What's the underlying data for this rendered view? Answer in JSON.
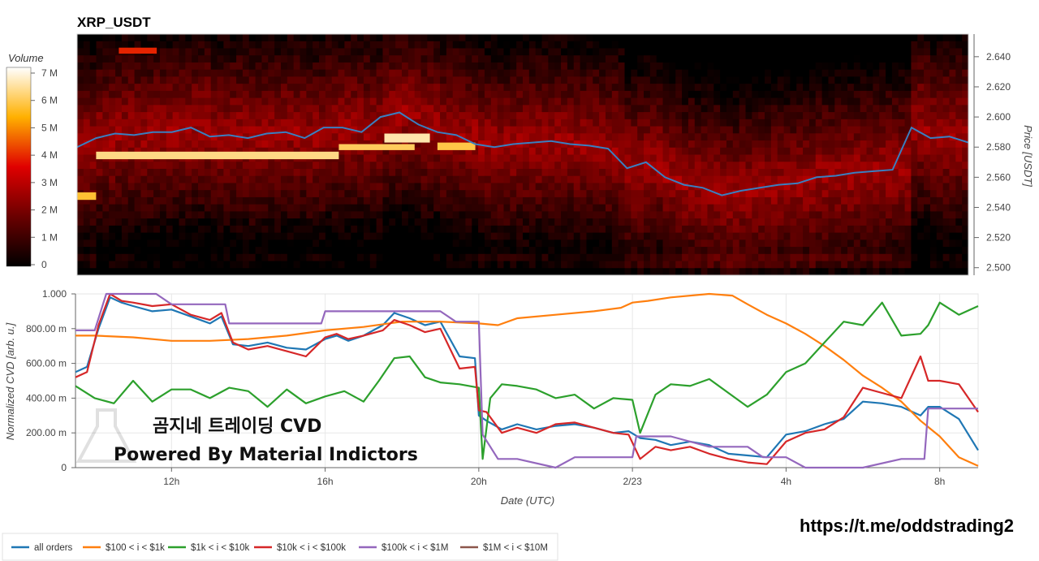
{
  "chart_data": [
    {
      "type": "heatmap",
      "title": "XRP_USDT",
      "ylabel": "Price [USDT]",
      "ylim": [
        2.495,
        2.655
      ],
      "yticks": [
        "2.500",
        "2.520",
        "2.540",
        "2.560",
        "2.580",
        "2.600",
        "2.620",
        "2.640"
      ],
      "colorbar": {
        "title": "Volume",
        "ticks": [
          "0",
          "1 M",
          "2 M",
          "3 M",
          "4 M",
          "5 M",
          "6 M",
          "7 M"
        ]
      },
      "price_series": {
        "x": [
          9.5,
          10.0,
          10.5,
          11.0,
          11.5,
          12.0,
          12.5,
          13.0,
          13.5,
          14.0,
          14.5,
          15.0,
          15.5,
          16.0,
          16.5,
          17.0,
          17.5,
          18.0,
          18.5,
          19.0,
          19.5,
          20.0,
          20.5,
          21.0,
          21.5,
          22.0,
          22.5,
          23.0,
          23.5,
          24.0,
          24.5,
          25.0,
          25.5,
          26.0,
          26.5,
          27.0,
          27.5,
          28.0,
          28.5,
          29.0,
          29.5,
          30.0,
          30.5,
          31.0,
          31.5,
          32.0,
          32.5,
          33.0
        ],
        "y": [
          2.58,
          2.586,
          2.589,
          2.588,
          2.59,
          2.59,
          2.593,
          2.587,
          2.588,
          2.586,
          2.589,
          2.59,
          2.586,
          2.593,
          2.593,
          2.59,
          2.6,
          2.603,
          2.595,
          2.59,
          2.588,
          2.582,
          2.58,
          2.582,
          2.583,
          2.584,
          2.582,
          2.581,
          2.579,
          2.566,
          2.57,
          2.56,
          2.555,
          2.553,
          2.548,
          2.551,
          2.553,
          2.555,
          2.556,
          2.56,
          2.561,
          2.563,
          2.564,
          2.565,
          2.593,
          2.586,
          2.587,
          2.583
        ]
      }
    },
    {
      "type": "line",
      "xlabel": "Date (UTC)",
      "ylabel": "Normalized CVD [arb. u.]",
      "ylim": [
        0,
        1.0
      ],
      "xlim": [
        9.5,
        33.0
      ],
      "xticks": [
        {
          "x": 12,
          "label": "12h"
        },
        {
          "x": 16,
          "label": "16h"
        },
        {
          "x": 20,
          "label": "20h"
        },
        {
          "x": 24,
          "label": "2/23"
        },
        {
          "x": 28,
          "label": "4h"
        },
        {
          "x": 32,
          "label": "8h"
        }
      ],
      "yticks": [
        {
          "v": 0,
          "label": "0"
        },
        {
          "v": 0.2,
          "label": "200.00 m"
        },
        {
          "v": 0.4,
          "label": "400.00 m"
        },
        {
          "v": 0.6,
          "label": "600.00 m"
        },
        {
          "v": 0.8,
          "label": "800.00 m"
        },
        {
          "v": 1.0,
          "label": "1.000"
        }
      ],
      "series": [
        {
          "name": "all orders",
          "color": "#1f77b4",
          "x": [
            9.5,
            9.8,
            10.1,
            10.4,
            10.7,
            11.0,
            11.5,
            12.0,
            12.5,
            13.0,
            13.3,
            13.6,
            14.0,
            14.5,
            15.0,
            15.5,
            16.0,
            16.3,
            16.6,
            17.0,
            17.5,
            17.8,
            18.2,
            18.6,
            19.0,
            19.5,
            19.9,
            20.0,
            20.2,
            20.6,
            21.0,
            21.5,
            22.0,
            22.5,
            23.0,
            23.5,
            23.9,
            24.2,
            24.6,
            25.0,
            25.5,
            26.0,
            26.5,
            27.0,
            27.5,
            28.0,
            28.5,
            29.0,
            29.5,
            30.0,
            30.5,
            31.0,
            31.5,
            31.7,
            32.0,
            32.5,
            33.0
          ],
          "y": [
            0.55,
            0.58,
            0.8,
            0.98,
            0.95,
            0.93,
            0.9,
            0.91,
            0.87,
            0.83,
            0.87,
            0.71,
            0.7,
            0.72,
            0.69,
            0.68,
            0.74,
            0.76,
            0.73,
            0.76,
            0.82,
            0.89,
            0.86,
            0.82,
            0.84,
            0.64,
            0.63,
            0.3,
            0.27,
            0.22,
            0.25,
            0.22,
            0.24,
            0.25,
            0.23,
            0.2,
            0.21,
            0.17,
            0.16,
            0.13,
            0.15,
            0.13,
            0.08,
            0.07,
            0.06,
            0.19,
            0.21,
            0.25,
            0.28,
            0.38,
            0.37,
            0.35,
            0.3,
            0.35,
            0.35,
            0.28,
            0.1
          ]
        },
        {
          "name": "$100 < i < $1k",
          "color": "#ff7f0e",
          "x": [
            9.5,
            10.0,
            11.0,
            12.0,
            13.0,
            14.0,
            15.0,
            16.0,
            17.0,
            18.0,
            19.0,
            20.0,
            20.5,
            21.0,
            22.0,
            23.0,
            23.7,
            24.0,
            24.4,
            25.0,
            26.0,
            26.6,
            27.0,
            27.5,
            28.0,
            28.5,
            29.0,
            29.5,
            30.0,
            30.5,
            31.0,
            31.5,
            32.0,
            32.5,
            33.0
          ],
          "y": [
            0.76,
            0.76,
            0.75,
            0.73,
            0.73,
            0.74,
            0.76,
            0.79,
            0.81,
            0.84,
            0.84,
            0.83,
            0.82,
            0.86,
            0.88,
            0.9,
            0.92,
            0.95,
            0.96,
            0.98,
            1.0,
            0.99,
            0.94,
            0.88,
            0.83,
            0.77,
            0.7,
            0.62,
            0.53,
            0.46,
            0.38,
            0.27,
            0.18,
            0.06,
            0.01
          ]
        },
        {
          "name": "$1k < i < $10k",
          "color": "#2ca02c",
          "x": [
            9.5,
            10.0,
            10.5,
            11.0,
            11.5,
            12.0,
            12.5,
            13.0,
            13.5,
            14.0,
            14.5,
            15.0,
            15.5,
            16.0,
            16.5,
            17.0,
            17.4,
            17.8,
            18.2,
            18.6,
            19.0,
            19.5,
            20.0,
            20.1,
            20.3,
            20.6,
            21.0,
            21.5,
            22.0,
            22.5,
            23.0,
            23.5,
            24.0,
            24.2,
            24.6,
            25.0,
            25.5,
            26.0,
            26.5,
            27.0,
            27.5,
            28.0,
            28.5,
            29.0,
            29.5,
            30.0,
            30.5,
            31.0,
            31.5,
            31.7,
            32.0,
            32.5,
            33.0
          ],
          "y": [
            0.47,
            0.4,
            0.37,
            0.5,
            0.38,
            0.45,
            0.45,
            0.4,
            0.46,
            0.44,
            0.35,
            0.45,
            0.37,
            0.41,
            0.44,
            0.38,
            0.5,
            0.63,
            0.64,
            0.52,
            0.49,
            0.48,
            0.46,
            0.05,
            0.4,
            0.48,
            0.47,
            0.45,
            0.4,
            0.42,
            0.34,
            0.4,
            0.39,
            0.2,
            0.42,
            0.48,
            0.47,
            0.51,
            0.43,
            0.35,
            0.42,
            0.55,
            0.6,
            0.72,
            0.84,
            0.82,
            0.95,
            0.76,
            0.77,
            0.82,
            0.95,
            0.88,
            0.93
          ]
        },
        {
          "name": "$10k < i < $100k",
          "color": "#d62728",
          "x": [
            9.5,
            9.8,
            10.1,
            10.4,
            10.7,
            11.0,
            11.5,
            12.0,
            12.5,
            13.0,
            13.3,
            13.6,
            14.0,
            14.5,
            15.0,
            15.5,
            16.0,
            16.3,
            16.6,
            17.0,
            17.5,
            17.8,
            18.2,
            18.6,
            19.0,
            19.5,
            19.9,
            20.0,
            20.2,
            20.6,
            21.0,
            21.5,
            22.0,
            22.5,
            23.0,
            23.5,
            23.9,
            24.2,
            24.6,
            25.0,
            25.5,
            26.0,
            26.5,
            27.0,
            27.5,
            28.0,
            28.5,
            29.0,
            29.5,
            30.0,
            30.5,
            31.0,
            31.5,
            31.7,
            32.0,
            32.5,
            33.0
          ],
          "y": [
            0.52,
            0.55,
            0.82,
            1.0,
            0.96,
            0.95,
            0.93,
            0.94,
            0.88,
            0.85,
            0.89,
            0.72,
            0.68,
            0.7,
            0.67,
            0.64,
            0.75,
            0.77,
            0.74,
            0.76,
            0.79,
            0.85,
            0.82,
            0.78,
            0.8,
            0.57,
            0.58,
            0.33,
            0.32,
            0.2,
            0.23,
            0.2,
            0.25,
            0.26,
            0.23,
            0.2,
            0.19,
            0.05,
            0.12,
            0.1,
            0.12,
            0.08,
            0.05,
            0.03,
            0.02,
            0.15,
            0.2,
            0.22,
            0.29,
            0.46,
            0.43,
            0.4,
            0.64,
            0.5,
            0.5,
            0.48,
            0.32
          ]
        },
        {
          "name": "$100k < i < $1M",
          "color": "#9467bd",
          "x": [
            9.5,
            10.0,
            10.3,
            11.0,
            11.6,
            12.0,
            13.0,
            13.4,
            13.5,
            15.0,
            15.9,
            16.0,
            17.0,
            18.0,
            19.0,
            19.4,
            20.0,
            20.1,
            20.5,
            21.0,
            22.0,
            22.5,
            23.0,
            23.6,
            24.0,
            24.1,
            25.0,
            26.0,
            27.0,
            27.4,
            28.0,
            28.5,
            29.0,
            30.0,
            31.0,
            31.6,
            31.7,
            32.0,
            33.0
          ],
          "y": [
            0.79,
            0.79,
            1.0,
            1.0,
            1.0,
            0.94,
            0.94,
            0.94,
            0.83,
            0.83,
            0.83,
            0.9,
            0.9,
            0.9,
            0.9,
            0.84,
            0.84,
            0.19,
            0.05,
            0.05,
            0.0,
            0.06,
            0.06,
            0.06,
            0.06,
            0.18,
            0.18,
            0.12,
            0.12,
            0.06,
            0.06,
            0.0,
            0.0,
            0.0,
            0.05,
            0.05,
            0.34,
            0.34,
            0.34
          ]
        },
        {
          "name": "$1M < i < $10M",
          "color": "#8c564b",
          "x": [],
          "y": []
        }
      ],
      "watermark": [
        "곰지네 트레이딩 CVD",
        "Powered By Material Indictors"
      ],
      "url": "https://t.me/oddstrading2"
    }
  ]
}
